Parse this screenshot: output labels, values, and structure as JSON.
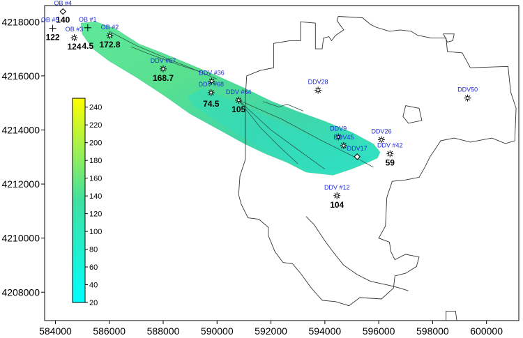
{
  "axes": {
    "x": {
      "ticks": [
        584000,
        586000,
        588000,
        590000,
        592000,
        594000,
        596000,
        598000,
        600000
      ],
      "range": [
        583600,
        601200
      ]
    },
    "y": {
      "ticks": [
        4208000,
        4210000,
        4212000,
        4214000,
        4216000,
        4218000
      ],
      "range": [
        4206950,
        4218600
      ]
    }
  },
  "colorbar": {
    "min": 20,
    "max": 250,
    "ticks": [
      20,
      40,
      60,
      80,
      100,
      120,
      140,
      160,
      180,
      200,
      220,
      240
    ],
    "color_low": "#00ffff",
    "color_high": "#ffff00"
  },
  "colors": {
    "well_label": "#1f2bd6",
    "outline": "#333333"
  },
  "wells": [
    {
      "name": "OB #4",
      "x": 584280,
      "y": 4218380,
      "value": "140",
      "marker": "diamond",
      "name_dx": 0,
      "name_dy": -9,
      "val_dx": 0,
      "val_dy": 16
    },
    {
      "name": "OB #5",
      "x": 583900,
      "y": 4217760,
      "value": "122",
      "marker": "cross",
      "name_dx": -4,
      "name_dy": -9,
      "val_dx": 0,
      "val_dy": 17
    },
    {
      "name": "OB #1",
      "x": 585200,
      "y": 4217780,
      "value": "4.5",
      "marker": "cross",
      "name_dx": 0,
      "name_dy": -9,
      "val_dx": 0,
      "val_dy": 30
    },
    {
      "name": "OB #3",
      "x": 584700,
      "y": 4217410,
      "value": "124",
      "marker": "star",
      "name_dx": 0,
      "name_dy": -9,
      "val_dx": 0,
      "val_dy": 17
    },
    {
      "name": "OB #2",
      "x": 586020,
      "y": 4217490,
      "value": "172.8",
      "marker": "star",
      "name_dx": 0,
      "name_dy": -9,
      "val_dx": 0,
      "val_dy": 17
    },
    {
      "name": "DDV #67",
      "x": 588000,
      "y": 4216260,
      "value": "168.7",
      "marker": "star",
      "name_dx": 0,
      "name_dy": -9,
      "val_dx": 0,
      "val_dy": 17
    },
    {
      "name": "DDV #36",
      "x": 589800,
      "y": 4215800,
      "value": "",
      "marker": "star",
      "name_dx": 0,
      "name_dy": -9,
      "val_dx": 0,
      "val_dy": 17
    },
    {
      "name": "DDV #68",
      "x": 589780,
      "y": 4215380,
      "value": "74.5",
      "marker": "star",
      "name_dx": 0,
      "name_dy": -9,
      "val_dx": 0,
      "val_dy": 20
    },
    {
      "name": "DDV #64",
      "x": 590800,
      "y": 4215100,
      "value": "105",
      "marker": "star",
      "name_dx": 0,
      "name_dy": -9,
      "val_dx": 0,
      "val_dy": 17
    },
    {
      "name": "DDV28",
      "x": 593750,
      "y": 4215470,
      "value": "",
      "marker": "star",
      "name_dx": 0,
      "name_dy": -9,
      "val_dx": 0,
      "val_dy": 17
    },
    {
      "name": "DDV50",
      "x": 599300,
      "y": 4215180,
      "value": "",
      "marker": "star",
      "name_dx": 0,
      "name_dy": -9,
      "val_dx": 0,
      "val_dy": 17
    },
    {
      "name": "DDV9",
      "x": 594500,
      "y": 4213740,
      "value": "",
      "marker": "star",
      "name_dx": 0,
      "name_dy": -9,
      "val_dx": 0,
      "val_dy": 17
    },
    {
      "name": "DDV45",
      "x": 594700,
      "y": 4213420,
      "value": "",
      "marker": "star",
      "name_dx": 0,
      "name_dy": -9,
      "val_dx": 0,
      "val_dy": 17
    },
    {
      "name": "DDV26",
      "x": 596100,
      "y": 4213640,
      "value": "",
      "marker": "star",
      "name_dx": 0,
      "name_dy": -9,
      "val_dx": 0,
      "val_dy": 17
    },
    {
      "name": "DDV17",
      "x": 595200,
      "y": 4213010,
      "value": "",
      "marker": "diamond",
      "name_dx": 0,
      "name_dy": -9,
      "val_dx": 0,
      "val_dy": 17
    },
    {
      "name": "DDV #42",
      "x": 596420,
      "y": 4213120,
      "value": "59",
      "marker": "star",
      "name_dx": 0,
      "name_dy": -9,
      "val_dx": 0,
      "val_dy": 17
    },
    {
      "name": "DDV #12",
      "x": 594450,
      "y": 4211570,
      "value": "104",
      "marker": "star",
      "name_dx": 0,
      "name_dy": -9,
      "val_dx": 0,
      "val_dy": 17
    }
  ],
  "plume": {
    "outline": [
      [
        584950,
        4217950
      ],
      [
        585500,
        4218000
      ],
      [
        586200,
        4217750
      ],
      [
        587100,
        4217180
      ],
      [
        588000,
        4216830
      ],
      [
        589000,
        4216420
      ],
      [
        590000,
        4216000
      ],
      [
        591000,
        4215550
      ],
      [
        592000,
        4215070
      ],
      [
        593000,
        4214680
      ],
      [
        594000,
        4214320
      ],
      [
        595000,
        4213910
      ],
      [
        595800,
        4213480
      ],
      [
        596050,
        4213180
      ],
      [
        595950,
        4212960
      ],
      [
        595600,
        4212800
      ],
      [
        595000,
        4212560
      ],
      [
        594300,
        4212330
      ],
      [
        593300,
        4212440
      ],
      [
        592600,
        4212800
      ],
      [
        591800,
        4213120
      ],
      [
        591000,
        4213500
      ],
      [
        590000,
        4214050
      ],
      [
        589000,
        4214600
      ],
      [
        588000,
        4215300
      ],
      [
        587000,
        4215950
      ],
      [
        586000,
        4216550
      ],
      [
        585400,
        4217000
      ],
      [
        585000,
        4217550
      ]
    ],
    "inner_area": [
      [
        589500,
        4215550
      ],
      [
        590500,
        4215100
      ],
      [
        591500,
        4214650
      ],
      [
        592800,
        4214050
      ],
      [
        594000,
        4213530
      ],
      [
        595000,
        4213150
      ],
      [
        595800,
        4213050
      ],
      [
        595400,
        4212780
      ],
      [
        594500,
        4212500
      ],
      [
        593600,
        4212450
      ],
      [
        592700,
        4212820
      ],
      [
        591700,
        4213300
      ],
      [
        590700,
        4213900
      ],
      [
        589800,
        4214450
      ],
      [
        589100,
        4214900
      ],
      [
        588900,
        4215250
      ]
    ],
    "contours": [
      [
        [
          586000,
          4217650
        ],
        [
          587000,
          4217120
        ],
        [
          588000,
          4216700
        ],
        [
          589000,
          4216300
        ],
        [
          590000,
          4215880
        ]
      ],
      [
        [
          586800,
          4217080
        ],
        [
          587500,
          4216800
        ],
        [
          588600,
          4216400
        ],
        [
          589400,
          4216150
        ]
      ],
      [
        [
          590800,
          4215100
        ],
        [
          591600,
          4214100
        ],
        [
          592300,
          4213400
        ],
        [
          593000,
          4212750
        ]
      ],
      [
        [
          590800,
          4215100
        ],
        [
          592000,
          4214000
        ],
        [
          593100,
          4213200
        ],
        [
          594000,
          4212550
        ]
      ],
      [
        [
          590800,
          4215100
        ],
        [
          592400,
          4214400
        ],
        [
          593800,
          4213650
        ],
        [
          595200,
          4212950
        ],
        [
          595800,
          4212620
        ]
      ],
      [
        [
          591700,
          4215050
        ],
        [
          592300,
          4214850
        ],
        [
          592600,
          4214950
        ],
        [
          593200,
          4214700
        ]
      ]
    ]
  },
  "boundaries": {
    "main": [
      [
        593100,
        4218000
      ],
      [
        593650,
        4217950
      ],
      [
        593650,
        4217000
      ],
      [
        593900,
        4217000
      ],
      [
        593950,
        4217400
      ],
      [
        594150,
        4217450
      ],
      [
        594250,
        4217300
      ],
      [
        594400,
        4217500
      ],
      [
        594700,
        4217700
      ],
      [
        594550,
        4217900
      ],
      [
        594450,
        4218050
      ],
      [
        594500,
        4218200
      ],
      [
        595400,
        4218150
      ],
      [
        595700,
        4217900
      ],
      [
        595900,
        4217800
      ],
      [
        596400,
        4217650
      ],
      [
        596800,
        4217700
      ],
      [
        597200,
        4217650
      ],
      [
        597450,
        4217500
      ],
      [
        597950,
        4217400
      ],
      [
        598500,
        4217400
      ],
      [
        598550,
        4216900
      ],
      [
        599100,
        4216850
      ],
      [
        599400,
        4216300
      ],
      [
        600800,
        4216350
      ],
      [
        600900,
        4215400
      ],
      [
        601100,
        4214800
      ],
      [
        601050,
        4213600
      ],
      [
        600700,
        4213500
      ],
      [
        600200,
        4213700
      ],
      [
        599400,
        4213550
      ],
      [
        598800,
        4213700
      ],
      [
        598300,
        4213600
      ],
      [
        597900,
        4213000
      ],
      [
        597700,
        4212600
      ],
      [
        597500,
        4212250
      ],
      [
        597000,
        4212150
      ],
      [
        596500,
        4212100
      ],
      [
        596300,
        4211500
      ],
      [
        596250,
        4210450
      ],
      [
        596000,
        4210000
      ],
      [
        596400,
        4209850
      ],
      [
        596450,
        4209500
      ],
      [
        596600,
        4209200
      ],
      [
        597000,
        4209400
      ],
      [
        597500,
        4209300
      ],
      [
        597400,
        4208950
      ],
      [
        597000,
        4208700
      ],
      [
        596600,
        4208600
      ],
      [
        596550,
        4208150
      ],
      [
        596100,
        4207750
      ],
      [
        595300,
        4207800
      ],
      [
        594900,
        4207500
      ],
      [
        594400,
        4207650
      ],
      [
        593900,
        4207700
      ],
      [
        593500,
        4208150
      ],
      [
        593100,
        4208700
      ],
      [
        592800,
        4209050
      ],
      [
        592450,
        4209100
      ],
      [
        592150,
        4209500
      ],
      [
        591900,
        4210100
      ],
      [
        591900,
        4210400
      ],
      [
        591550,
        4210700
      ],
      [
        591150,
        4210750
      ],
      [
        590900,
        4211250
      ],
      [
        590800,
        4211600
      ],
      [
        590850,
        4212300
      ],
      [
        591050,
        4212900
      ],
      [
        591050,
        4215200
      ],
      [
        591100,
        4216000
      ],
      [
        591600,
        4216200
      ],
      [
        592100,
        4216300
      ],
      [
        592100,
        4217200
      ],
      [
        592700,
        4217300
      ],
      [
        593100,
        4217300
      ]
    ],
    "channel": [
      [
        593300,
        4210800
      ],
      [
        593600,
        4210500
      ],
      [
        594000,
        4209900
      ],
      [
        594300,
        4209500
      ],
      [
        594700,
        4209000
      ],
      [
        595200,
        4208650
      ],
      [
        595700,
        4208400
      ],
      [
        596400,
        4208250
      ],
      [
        596800,
        4208150
      ],
      [
        597100,
        4208050
      ]
    ],
    "small1": [
      [
        597000,
        4214900
      ],
      [
        597500,
        4214800
      ],
      [
        597600,
        4214350
      ],
      [
        597100,
        4214250
      ],
      [
        596900,
        4214500
      ]
    ],
    "small2": [
      [
        598400,
        4217550
      ],
      [
        598800,
        4217550
      ],
      [
        598750,
        4217300
      ],
      [
        598550,
        4217250
      ],
      [
        598450,
        4217450
      ]
    ],
    "small3": [
      [
        598500,
        4206950
      ],
      [
        598500,
        4207300
      ],
      [
        598850,
        4207300
      ],
      [
        598900,
        4206950
      ]
    ]
  }
}
